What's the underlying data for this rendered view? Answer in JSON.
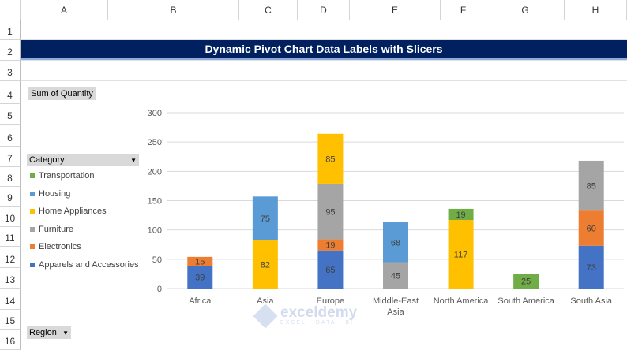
{
  "columns": [
    "A",
    "B",
    "C",
    "D",
    "E",
    "F",
    "G",
    "H"
  ],
  "rows": [
    "1",
    "2",
    "3",
    "4",
    "5",
    "6",
    "7",
    "8",
    "9",
    "10",
    "11",
    "12",
    "13",
    "14",
    "15",
    "16"
  ],
  "banner_title": "Dynamic Pivot Chart Data Labels with Slicers",
  "value_field_button": "Sum of Quantity",
  "category_filter": {
    "label": "Category"
  },
  "region_filter": {
    "label": "Region"
  },
  "watermark": {
    "brand": "exceldemy",
    "tagline": "EXCEL · DATA · BI"
  },
  "chart_data": {
    "type": "bar",
    "stacked": true,
    "categories": [
      "Africa",
      "Asia",
      "Europe",
      "Middle-East Asia",
      "North America",
      "South America",
      "South Asia"
    ],
    "series": [
      {
        "name": "Apparels and Accessories",
        "color": "#4472C4",
        "values": [
          39,
          null,
          65,
          null,
          null,
          null,
          73
        ]
      },
      {
        "name": "Electronics",
        "color": "#ED7D31",
        "values": [
          15,
          null,
          19,
          null,
          null,
          null,
          60
        ]
      },
      {
        "name": "Furniture",
        "color": "#A5A5A5",
        "values": [
          null,
          null,
          95,
          45,
          null,
          null,
          85
        ]
      },
      {
        "name": "Home Appliances",
        "color": "#FFC000",
        "values": [
          null,
          82,
          85,
          null,
          117,
          null,
          null
        ]
      },
      {
        "name": "Housing",
        "color": "#5B9BD5",
        "values": [
          null,
          75,
          null,
          68,
          null,
          null,
          null
        ]
      },
      {
        "name": "Transportation",
        "color": "#70AD47",
        "values": [
          null,
          null,
          null,
          null,
          19,
          25,
          null
        ]
      }
    ],
    "legend_order": [
      "Transportation",
      "Housing",
      "Home Appliances",
      "Furniture",
      "Electronics",
      "Apparels and Accessories"
    ],
    "yticks": [
      0,
      50,
      100,
      150,
      200,
      250,
      300
    ],
    "ylim": [
      0,
      300
    ],
    "grid": true,
    "legend_position": "left",
    "data_labels": true
  }
}
